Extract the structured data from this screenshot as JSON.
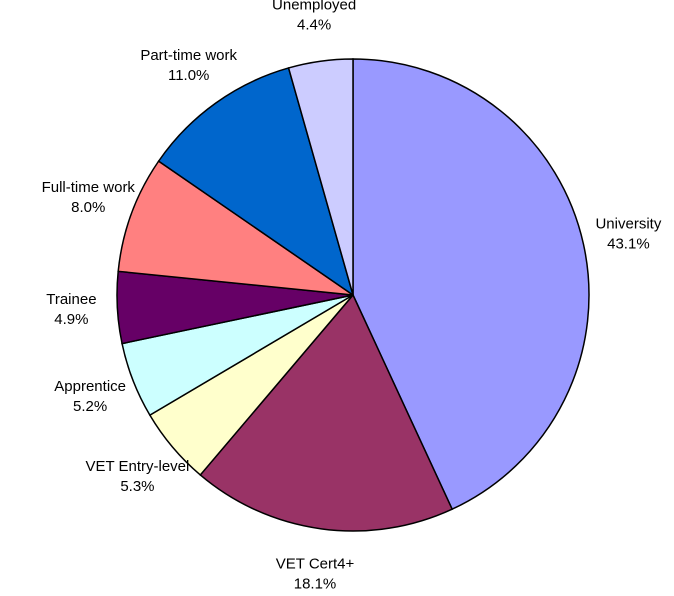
{
  "chart_data": {
    "type": "pie",
    "categories": [
      "University",
      "VET Cert4+",
      "VET Entry-level",
      "Apprentice",
      "Trainee",
      "Full-time work",
      "Part-time work",
      "Unemployed"
    ],
    "values": [
      43.1,
      18.1,
      5.3,
      5.2,
      4.9,
      8.0,
      11.0,
      4.4
    ],
    "value_labels": [
      "43.1%",
      "18.1%",
      "5.3%",
      "5.2%",
      "4.9%",
      "8.0%",
      "11.0%",
      "4.4%"
    ],
    "colors": [
      "#9999ff",
      "#993366",
      "#ffffcc",
      "#ccffff",
      "#660066",
      "#ff8080",
      "#0066cc",
      "#ccccff"
    ]
  }
}
